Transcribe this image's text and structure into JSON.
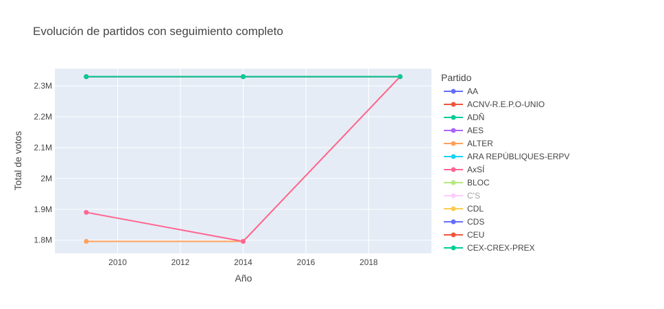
{
  "chart_data": {
    "type": "line",
    "title": "Evolución de partidos con seguimiento completo",
    "xlabel": "Año",
    "ylabel": "Total de votos",
    "legend_title": "Partido",
    "legend_position": "right",
    "grid": true,
    "plot_background": "#e5ecf6",
    "xlim": [
      2008.0,
      2020.0
    ],
    "ylim": [
      1757000,
      2356000
    ],
    "x_ticks": [
      2010,
      2012,
      2014,
      2016,
      2018
    ],
    "x_tick_labels": [
      "2010",
      "2012",
      "2014",
      "2016",
      "2018"
    ],
    "y_ticks": [
      1800000,
      1900000,
      2000000,
      2100000,
      2200000,
      2300000
    ],
    "y_tick_labels": [
      "1.8M",
      "1.9M",
      "2M",
      "2.1M",
      "2.2M",
      "2.3M"
    ],
    "series": [
      {
        "name": "AA",
        "color": "#636efa",
        "x": [
          2009,
          2014,
          2019
        ],
        "y": [
          2330000,
          2330000,
          2330000
        ]
      },
      {
        "name": "ACNV-R.E.P.O-UNIO",
        "color": "#ef553b",
        "x": [
          2009,
          2014,
          2019
        ],
        "y": [
          2330000,
          2330000,
          2330000
        ]
      },
      {
        "name": "ADÑ",
        "color": "#00cc96",
        "x": [
          2009,
          2014,
          2019
        ],
        "y": [
          2330000,
          2330000,
          2330000
        ]
      },
      {
        "name": "AES",
        "color": "#ab63fa",
        "x": [
          2009,
          2014,
          2019
        ],
        "y": [
          2330000,
          2330000,
          2330000
        ]
      },
      {
        "name": "ALTER",
        "color": "#ffa15a",
        "x": [
          2009,
          2014,
          2019
        ],
        "y": [
          1796000,
          1796000,
          2330000
        ]
      },
      {
        "name": "ARA REPÚBLIQUES-ERPV",
        "color": "#19d3f3",
        "x": [
          2009,
          2014,
          2019
        ],
        "y": [
          2330000,
          2330000,
          2330000
        ]
      },
      {
        "name": "AxSÍ",
        "color": "#ff6692",
        "x": [
          2009,
          2014,
          2019
        ],
        "y": [
          1890000,
          1796000,
          2330000
        ]
      },
      {
        "name": "BLOC",
        "color": "#b6e880",
        "x": [
          2009,
          2014,
          2019
        ],
        "y": [
          2330000,
          2330000,
          2330000
        ]
      },
      {
        "name": "C'S",
        "color": "#ff97ff",
        "x": [
          2009,
          2014,
          2019
        ],
        "y": [
          2330000,
          2330000,
          2330000
        ]
      },
      {
        "name": "CDL",
        "color": "#fecb52",
        "x": [
          2009,
          2014,
          2019
        ],
        "y": [
          2330000,
          2330000,
          2330000
        ]
      },
      {
        "name": "CDS",
        "color": "#636efa",
        "x": [
          2009,
          2014,
          2019
        ],
        "y": [
          2330000,
          2330000,
          2330000
        ]
      },
      {
        "name": "CEU",
        "color": "#ef553b",
        "x": [
          2009,
          2014,
          2019
        ],
        "y": [
          2330000,
          2330000,
          2330000
        ]
      },
      {
        "name": "CEX-CREX-PREX",
        "color": "#00cc96",
        "x": [
          2009,
          2014,
          2019
        ],
        "y": [
          2330000,
          2330000,
          2330000
        ]
      }
    ],
    "legend_faded": [
      "C'S"
    ]
  }
}
